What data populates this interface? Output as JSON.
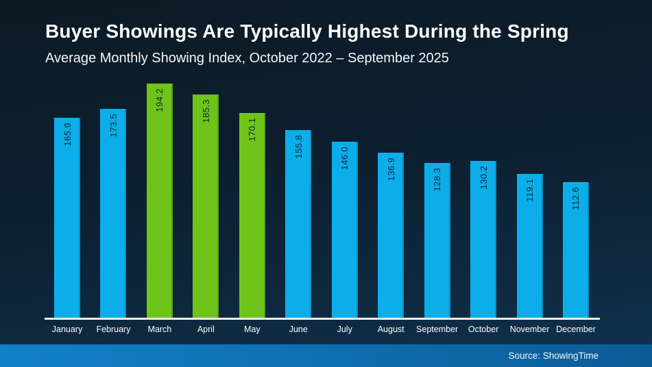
{
  "header": {
    "title": "Buyer Showings Are Typically Highest During the Spring",
    "subtitle": "Average Monthly Showing Index, October 2022 – September 2025"
  },
  "footer": {
    "source_label": "Source: ShowingTime"
  },
  "colors": {
    "bar_blue": "#0caee9",
    "bar_green": "#6fc41a",
    "value_label": "#0e2435",
    "axis_line": "#eef2f4",
    "background_top": "#0c1a25",
    "background_bottom": "#103350",
    "footer_left": "#1181c9",
    "footer_right": "#0b5c96"
  },
  "chart_data": {
    "type": "bar",
    "title": "Buyer Showings Are Typically Highest During the Spring",
    "subtitle": "Average Monthly Showing Index, October 2022 – September 2025",
    "categories": [
      "January",
      "February",
      "March",
      "April",
      "May",
      "June",
      "July",
      "August",
      "September",
      "October",
      "November",
      "December"
    ],
    "values": [
      165.9,
      173.5,
      194.2,
      185.3,
      170.1,
      155.8,
      146.0,
      136.9,
      128.3,
      130.2,
      119.1,
      112.6
    ],
    "value_labels": [
      "165.9",
      "173.5",
      "194.2",
      "185.3",
      "170.1",
      "155.8",
      "146.0",
      "136.9",
      "128.3",
      "130.2",
      "119.1",
      "112.6"
    ],
    "bar_colors": [
      "blue",
      "blue",
      "green",
      "green",
      "green",
      "blue",
      "blue",
      "blue",
      "blue",
      "blue",
      "blue",
      "blue"
    ],
    "highlighted_months": [
      "March",
      "April",
      "May"
    ],
    "xlabel": "",
    "ylabel": "",
    "ylim": [
      0,
      200
    ],
    "grid": false,
    "legend_position": "none",
    "value_label_rotation": -90,
    "source": "ShowingTime"
  }
}
